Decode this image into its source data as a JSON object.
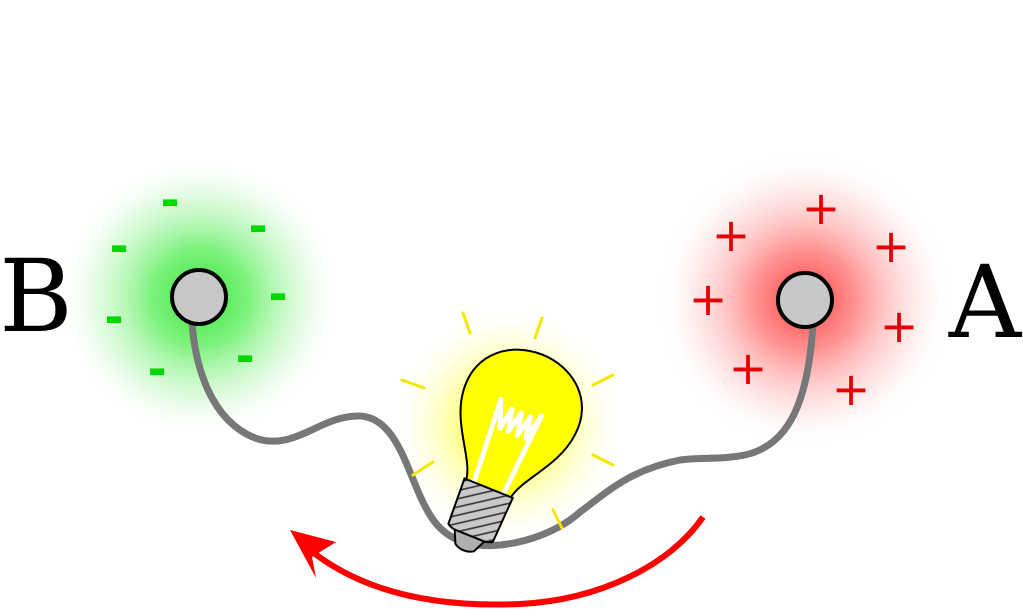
{
  "labels": {
    "left_terminal": "B",
    "right_terminal": "A"
  },
  "charges": {
    "left_symbol": "-",
    "right_symbol": "+"
  },
  "colors": {
    "positive_glow": "#ff3b3b",
    "positive_charge": "#e60000",
    "negative_glow": "#33e633",
    "negative_charge": "#00d800",
    "terminal_fill": "#c8c8c8",
    "wire": "#777777",
    "bulb_glass": "#ffff00",
    "bulb_glow": "#ffff55",
    "bulb_rays": "#f5e600",
    "bulb_base": "#b0b0b0",
    "current_arrow": "#ff0000"
  },
  "icons": {
    "bulb": "light-bulb-icon",
    "arrow": "curved-arrow-icon"
  }
}
